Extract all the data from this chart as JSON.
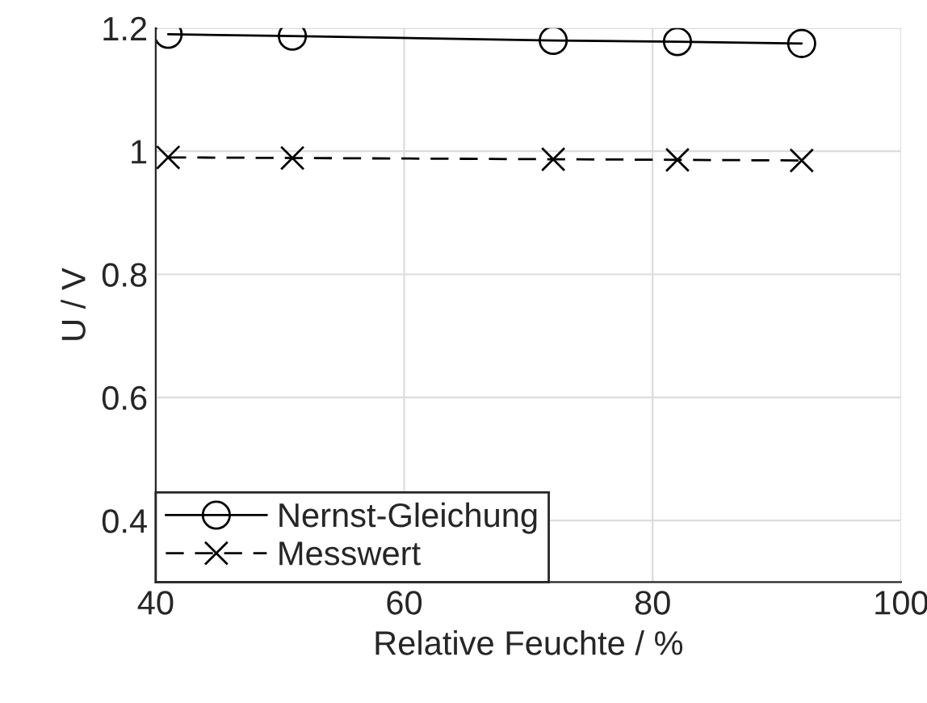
{
  "chart_data": {
    "type": "line",
    "xlabel": "Relative Feuchte / %",
    "ylabel": "U / V",
    "x": [
      41,
      51,
      72,
      82,
      92
    ],
    "series": [
      {
        "name": "Nernst-Gleichung",
        "color": "#000000",
        "values": [
          1.19,
          1.187,
          1.18,
          1.178,
          1.175
        ],
        "marker": "circle",
        "line_style": "solid"
      },
      {
        "name": "Messwert",
        "color": "#000000",
        "values": [
          0.99,
          0.989,
          0.987,
          0.986,
          0.985
        ],
        "marker": "cross",
        "line_style": "dashed"
      }
    ],
    "xlim": [
      40,
      100
    ],
    "xticks": [
      40,
      60,
      80,
      100
    ],
    "ylim": [
      0.3,
      1.2
    ],
    "yticks": [
      0.4,
      0.6,
      0.8,
      1,
      1.2
    ],
    "grid": true,
    "legend": "bottom left"
  }
}
